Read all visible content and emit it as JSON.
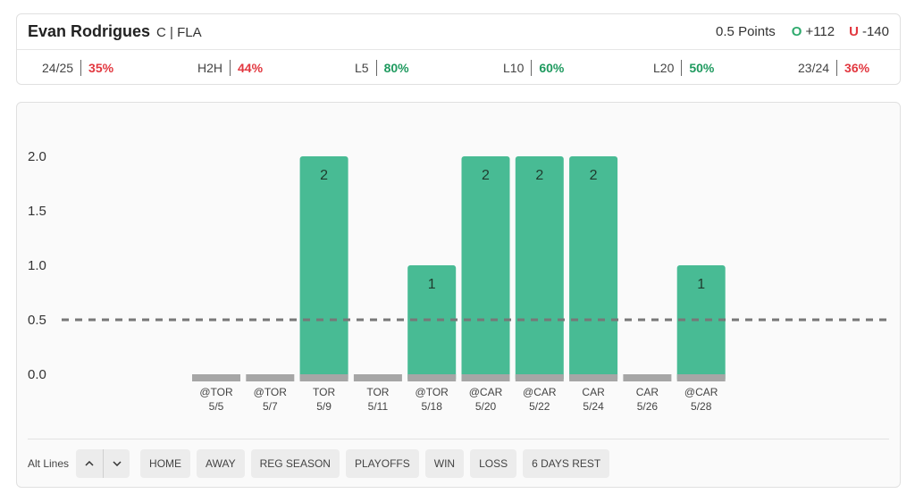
{
  "player": {
    "name": "Evan Rodrigues",
    "meta": "C | FLA"
  },
  "odds": {
    "line": "0.5 Points",
    "over_letter": "O",
    "over_value": "+112",
    "under_letter": "U",
    "under_value": "-140"
  },
  "stats": [
    {
      "label": "24/25",
      "value": "35%",
      "trend": "neg"
    },
    {
      "label": "H2H",
      "value": "44%",
      "trend": "neg"
    },
    {
      "label": "L5",
      "value": "80%",
      "trend": "pos"
    },
    {
      "label": "L10",
      "value": "60%",
      "trend": "pos"
    },
    {
      "label": "L20",
      "value": "50%",
      "trend": "pos"
    },
    {
      "label": "23/24",
      "value": "36%",
      "trend": "neg"
    }
  ],
  "chart_data": {
    "type": "bar",
    "categories": [
      "@TOR 5/5",
      "@TOR 5/7",
      "TOR 5/9",
      "TOR 5/11",
      "@TOR 5/18",
      "@CAR 5/20",
      "@CAR 5/22",
      "CAR 5/24",
      "CAR 5/26",
      "@CAR 5/28"
    ],
    "opponents": [
      "@TOR",
      "@TOR",
      "TOR",
      "TOR",
      "@TOR",
      "@CAR",
      "@CAR",
      "CAR",
      "CAR",
      "@CAR"
    ],
    "dates": [
      "5/5",
      "5/7",
      "5/9",
      "5/11",
      "5/18",
      "5/20",
      "5/22",
      "5/24",
      "5/26",
      "5/28"
    ],
    "values": [
      0,
      0,
      2,
      0,
      1,
      2,
      2,
      2,
      0,
      1
    ],
    "y_ticks": [
      "0.0",
      "0.5",
      "1.0",
      "1.5",
      "2.0"
    ],
    "ylim": [
      0,
      2
    ],
    "reference_line": 0.5,
    "grid": false,
    "colors": {
      "bar": "#48bb94",
      "base": "#a6a6a6",
      "reference": "#777777"
    }
  },
  "filters": {
    "alt_lines_label": "Alt Lines",
    "stepper_up": "up-chevron-icon",
    "stepper_down": "down-chevron-icon",
    "chips": [
      "HOME",
      "AWAY",
      "REG SEASON",
      "PLAYOFFS",
      "WIN",
      "LOSS",
      "6 DAYS REST"
    ]
  }
}
